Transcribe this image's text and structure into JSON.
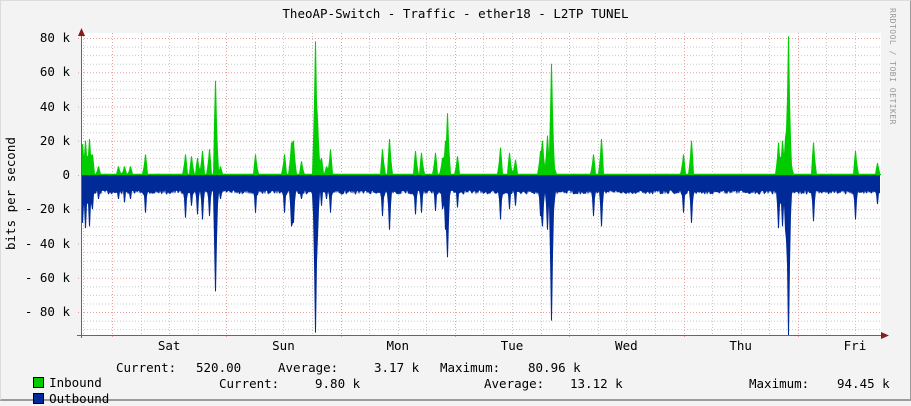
{
  "title": "TheoAP-Switch - Traffic - ether18 - L2TP TUNEL",
  "credit": "RRDTOOL / TOBI OETIKER",
  "colors": {
    "background": "#f3f3f3",
    "canvas": "#ffffff",
    "inbound": "#00cc00",
    "outbound": "#002a97",
    "major_grid": "#e8a0a0",
    "minor_grid": "#c8c8c8",
    "axis": "#666666",
    "arrow": "#8b1a1a"
  },
  "legend": {
    "inbound": {
      "label": "Inbound",
      "current_label": "Current:",
      "current": "520.00",
      "average_label": "Average:",
      "average": "3.17 k",
      "maximum_label": "Maximum:",
      "maximum": "80.96 k"
    },
    "outbound": {
      "label": "Outbound",
      "current_label": "Current:",
      "current": "9.80 k",
      "average_label": "Average:",
      "average": "13.12 k",
      "maximum_label": "Maximum:",
      "maximum": "94.45 k"
    }
  },
  "chart_data": {
    "type": "area",
    "title": "TheoAP-Switch - Traffic - ether18 - L2TP TUNEL",
    "xlabel": "",
    "ylabel": "bits per second",
    "ylim": [
      -95000,
      82000
    ],
    "yticks": [
      {
        "value": 80000,
        "label": "80 k"
      },
      {
        "value": 60000,
        "label": "60 k"
      },
      {
        "value": 40000,
        "label": "40 k"
      },
      {
        "value": 20000,
        "label": "20 k"
      },
      {
        "value": 0,
        "label": "0"
      },
      {
        "value": -20000,
        "label": "-20 k"
      },
      {
        "value": -40000,
        "label": "-40 k"
      },
      {
        "value": -60000,
        "label": "-60 k"
      },
      {
        "value": -80000,
        "label": "-80 k"
      }
    ],
    "xticks": [
      "Sat",
      "Sun",
      "Mon",
      "Tue",
      "Wed",
      "Thu",
      "Fri"
    ],
    "x_unit": "days (0 = plot start, Friday ~17:30; day boundaries at 0.27, 1.27, ...)",
    "xlim": [
      0,
      7.0
    ],
    "grid": true,
    "legend_position": "bottom",
    "baseline": {
      "inbound": 500,
      "outbound": -10000
    },
    "series": [
      {
        "name": "Inbound",
        "direction": "up",
        "peaks": [
          [
            0.01,
            18000
          ],
          [
            0.04,
            20000
          ],
          [
            0.07,
            21000
          ],
          [
            0.1,
            12000
          ],
          [
            0.15,
            5000
          ],
          [
            0.33,
            5000
          ],
          [
            0.38,
            5000
          ],
          [
            0.43,
            5000
          ],
          [
            0.56,
            12000
          ],
          [
            0.91,
            12000
          ],
          [
            0.97,
            11000
          ],
          [
            1.02,
            10000
          ],
          [
            1.06,
            14000
          ],
          [
            1.12,
            15000
          ],
          [
            1.18,
            55000
          ],
          [
            1.22,
            5000
          ],
          [
            1.53,
            12000
          ],
          [
            1.78,
            12000
          ],
          [
            1.84,
            19000
          ],
          [
            1.86,
            20000
          ],
          [
            1.93,
            8000
          ],
          [
            2.05,
            78000
          ],
          [
            2.07,
            33000
          ],
          [
            2.1,
            10000
          ],
          [
            2.15,
            5000
          ],
          [
            2.18,
            15000
          ],
          [
            2.64,
            15000
          ],
          [
            2.7,
            21000
          ],
          [
            2.93,
            14000
          ],
          [
            2.98,
            13000
          ],
          [
            3.1,
            13000
          ],
          [
            3.16,
            10000
          ],
          [
            3.19,
            20000
          ],
          [
            3.21,
            36000
          ],
          [
            3.29,
            11000
          ],
          [
            3.67,
            16000
          ],
          [
            3.75,
            13000
          ],
          [
            3.8,
            9000
          ],
          [
            4.02,
            14000
          ],
          [
            4.04,
            20000
          ],
          [
            4.08,
            23000
          ],
          [
            4.11,
            22000
          ],
          [
            4.12,
            65000
          ],
          [
            4.14,
            4000
          ],
          [
            4.48,
            12000
          ],
          [
            4.55,
            21000
          ],
          [
            5.27,
            12000
          ],
          [
            5.34,
            20000
          ],
          [
            6.1,
            19000
          ],
          [
            6.14,
            20000
          ],
          [
            6.16,
            22000
          ],
          [
            6.17,
            26000
          ],
          [
            6.19,
            81000
          ],
          [
            6.21,
            10000
          ],
          [
            6.41,
            19000
          ],
          [
            6.78,
            14000
          ],
          [
            6.97,
            7000
          ]
        ]
      },
      {
        "name": "Outbound",
        "direction": "down",
        "peaks": [
          [
            0.01,
            -28000
          ],
          [
            0.04,
            -31000
          ],
          [
            0.07,
            -30000
          ],
          [
            0.1,
            -20000
          ],
          [
            0.15,
            -14000
          ],
          [
            0.33,
            -14000
          ],
          [
            0.38,
            -16000
          ],
          [
            0.43,
            -14000
          ],
          [
            0.56,
            -22000
          ],
          [
            0.91,
            -25000
          ],
          [
            0.97,
            -18000
          ],
          [
            1.02,
            -23000
          ],
          [
            1.06,
            -26000
          ],
          [
            1.12,
            -24000
          ],
          [
            1.18,
            -68000
          ],
          [
            1.22,
            -14000
          ],
          [
            1.53,
            -22000
          ],
          [
            1.78,
            -22000
          ],
          [
            1.84,
            -30000
          ],
          [
            1.86,
            -28000
          ],
          [
            1.93,
            -14000
          ],
          [
            2.05,
            -92000
          ],
          [
            2.07,
            -36000
          ],
          [
            2.1,
            -18000
          ],
          [
            2.15,
            -14000
          ],
          [
            2.18,
            -22000
          ],
          [
            2.64,
            -24000
          ],
          [
            2.7,
            -32000
          ],
          [
            2.93,
            -23000
          ],
          [
            2.98,
            -22000
          ],
          [
            3.1,
            -21000
          ],
          [
            3.16,
            -20000
          ],
          [
            3.19,
            -32000
          ],
          [
            3.21,
            -48000
          ],
          [
            3.29,
            -19000
          ],
          [
            3.67,
            -26000
          ],
          [
            3.75,
            -20000
          ],
          [
            3.8,
            -18000
          ],
          [
            4.02,
            -24000
          ],
          [
            4.04,
            -30000
          ],
          [
            4.08,
            -32000
          ],
          [
            4.11,
            -30000
          ],
          [
            4.12,
            -85000
          ],
          [
            4.14,
            -14000
          ],
          [
            4.48,
            -24000
          ],
          [
            4.55,
            -30000
          ],
          [
            5.27,
            -22000
          ],
          [
            5.34,
            -28000
          ],
          [
            6.1,
            -31000
          ],
          [
            6.14,
            -30000
          ],
          [
            6.16,
            -32000
          ],
          [
            6.17,
            -38000
          ],
          [
            6.19,
            -94000
          ],
          [
            6.21,
            -20000
          ],
          [
            6.41,
            -27000
          ],
          [
            6.78,
            -26000
          ],
          [
            6.97,
            -17000
          ]
        ]
      }
    ]
  }
}
